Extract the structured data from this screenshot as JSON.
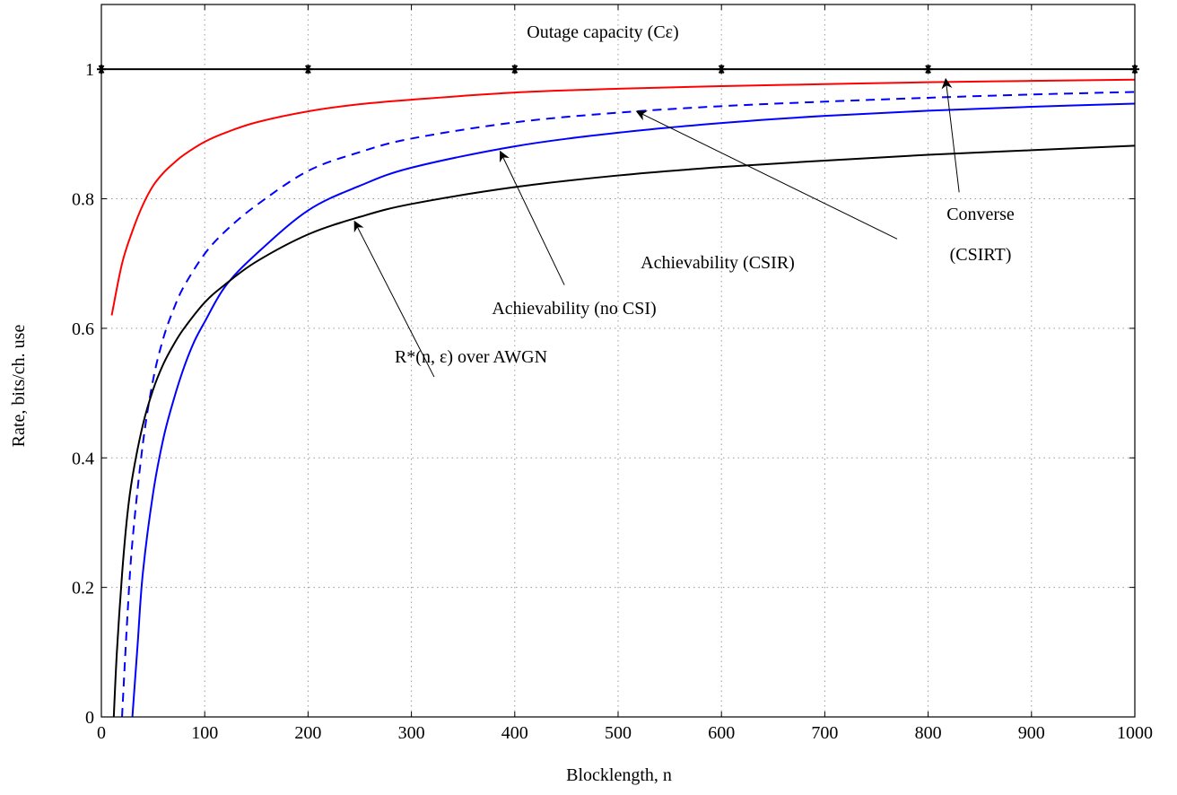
{
  "chart_data": {
    "type": "line",
    "xlabel": "Blocklength, n",
    "ylabel": "Rate, bits/ch. use",
    "xlim": [
      0,
      1000
    ],
    "ylim": [
      0,
      1.1
    ],
    "x_ticks": [
      "0",
      "100",
      "200",
      "300",
      "400",
      "500",
      "600",
      "700",
      "800",
      "900",
      "1000"
    ],
    "y_ticks": [
      "0",
      "0.2",
      "0.4",
      "0.6",
      "0.8",
      "1"
    ],
    "grid": true,
    "series": [
      {
        "key": "outage",
        "color": "#000000",
        "style": "solid-with-star-markers",
        "x": [
          0,
          200,
          400,
          600,
          800,
          1000
        ],
        "y": [
          1.0,
          1.0,
          1.0,
          1.0,
          1.0,
          1.0
        ]
      },
      {
        "key": "converse",
        "color": "#ff0000",
        "style": "solid",
        "x": [
          10,
          20,
          30,
          40,
          50,
          60,
          70,
          80,
          100,
          120,
          150,
          200,
          250,
          300,
          400,
          500,
          600,
          700,
          800,
          900,
          1000
        ],
        "y": [
          0.62,
          0.7,
          0.75,
          0.79,
          0.82,
          0.84,
          0.855,
          0.868,
          0.888,
          0.902,
          0.918,
          0.935,
          0.946,
          0.953,
          0.964,
          0.97,
          0.974,
          0.977,
          0.98,
          0.982,
          0.984
        ]
      },
      {
        "key": "csir",
        "color": "#0000ff",
        "style": "dashed",
        "x": [
          20,
          25,
          30,
          40,
          50,
          60,
          70,
          80,
          100,
          120,
          150,
          200,
          250,
          300,
          400,
          500,
          600,
          700,
          800,
          900,
          1000
        ],
        "y": [
          0.0,
          0.15,
          0.27,
          0.42,
          0.52,
          0.585,
          0.63,
          0.665,
          0.715,
          0.75,
          0.79,
          0.843,
          0.872,
          0.893,
          0.918,
          0.933,
          0.943,
          0.95,
          0.956,
          0.961,
          0.965
        ]
      },
      {
        "key": "nocsi",
        "color": "#0000ff",
        "style": "solid",
        "x": [
          30,
          35,
          40,
          50,
          60,
          70,
          80,
          90,
          100,
          120,
          150,
          200,
          250,
          300,
          400,
          500,
          600,
          700,
          800,
          900,
          1000
        ],
        "y": [
          0.0,
          0.11,
          0.22,
          0.345,
          0.43,
          0.49,
          0.54,
          0.58,
          0.61,
          0.665,
          0.715,
          0.782,
          0.82,
          0.848,
          0.881,
          0.902,
          0.917,
          0.928,
          0.936,
          0.942,
          0.947
        ]
      },
      {
        "key": "awgn",
        "color": "#000000",
        "style": "solid",
        "x": [
          12,
          15,
          20,
          25,
          30,
          40,
          50,
          60,
          70,
          80,
          100,
          120,
          150,
          200,
          250,
          300,
          400,
          500,
          600,
          700,
          800,
          900,
          1000
        ],
        "y": [
          0.0,
          0.1,
          0.22,
          0.31,
          0.37,
          0.45,
          0.505,
          0.545,
          0.575,
          0.6,
          0.64,
          0.668,
          0.703,
          0.745,
          0.772,
          0.792,
          0.818,
          0.836,
          0.849,
          0.859,
          0.868,
          0.875,
          0.882
        ]
      }
    ],
    "annotations": {
      "outage": "Outage capacity (Cε)",
      "converse_line1": "Converse",
      "converse_line2": "(CSIRT)",
      "csir": "Achievability (CSIR)",
      "nocsi": "Achievability (no CSI)",
      "awgn": "R*(n, ε) over AWGN"
    },
    "arrows": [
      {
        "key": "converse",
        "from": [
          830,
          0.81
        ],
        "to": [
          817,
          0.985
        ]
      },
      {
        "key": "csir",
        "from": [
          770,
          0.738
        ],
        "to": [
          518,
          0.935
        ]
      },
      {
        "key": "nocsi",
        "from": [
          448,
          0.667
        ],
        "to": [
          386,
          0.873
        ]
      },
      {
        "key": "awgn",
        "from": [
          322,
          0.525
        ],
        "to": [
          245,
          0.765
        ]
      }
    ]
  }
}
